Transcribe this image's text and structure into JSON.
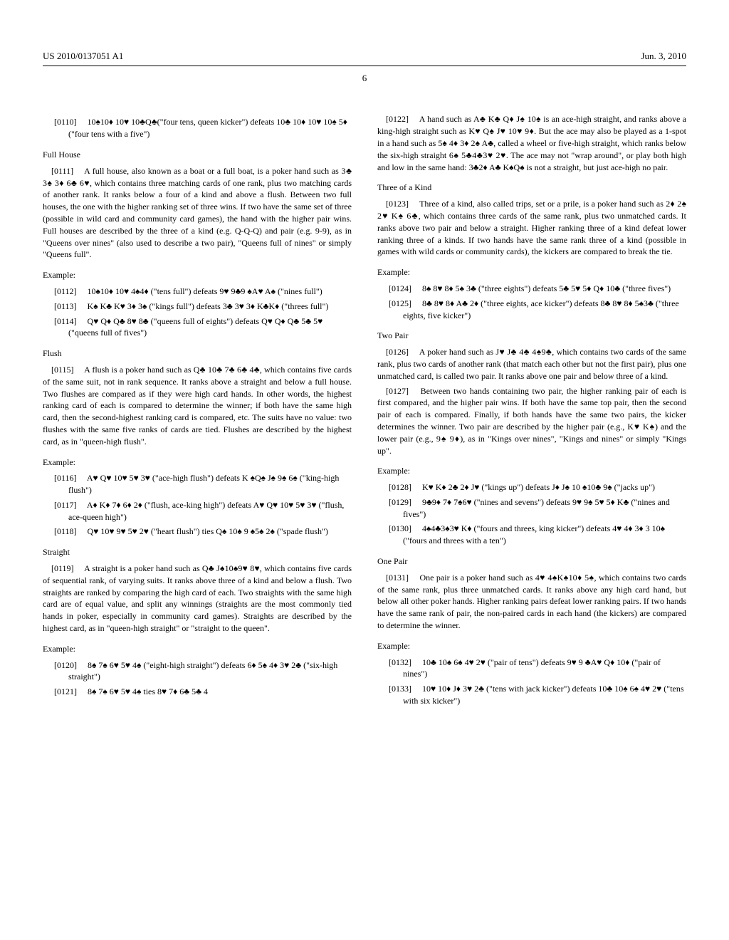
{
  "header": {
    "pub": "US 2010/0137051 A1",
    "date": "Jun. 3, 2010",
    "page": "6"
  },
  "p0110": "[0110]  10♠10♦ 10♥ 10♣Q♣(\"four tens, queen kicker\") defeats 10♣ 10♦ 10♥ 10♠ 5♦ (\"four tens with a five\")",
  "sec_fullhouse": "Full House",
  "p0111": "[0111]  A full house, also known as a boat or a full boat, is a poker hand such as 3♣ 3♠ 3♦ 6♣ 6♥, which contains three matching cards of one rank, plus two matching cards of another rank. It ranks below a four of a kind and above a flush. Between two full houses, the one with the higher ranking set of three wins. If two have the same set of three (possible in wild card and community card games), the hand with the higher pair wins. Full houses are described by the three of a kind (e.g. Q-Q-Q) and pair (e.g. 9-9), as in \"Queens over nines\" (also used to describe a two pair), \"Queens full of nines\" or simply \"Queens full\".",
  "ex1": "Example:",
  "p0112": "[0112]  10♠10♦ 10♥ 4♠4♦ (\"tens full\") defeats 9♥ 9♣9 ♠A♥ A♠ (\"nines full\")",
  "p0113": "[0113]  K♠ K♣ K♥ 3♦ 3♠ (\"kings full\") defeats 3♣ 3♥ 3♦ K♣K♦ (\"threes full\")",
  "p0114": "[0114]  Q♥ Q♦ Q♣ 8♥ 8♣ (\"queens full of eights\") defeats Q♥ Q♦ Q♣ 5♣ 5♥ (\"queens full of fives\")",
  "sec_flush": "Flush",
  "p0115": "[0115]  A flush is a poker hand such as Q♣ 10♣ 7♣ 6♣ 4♣, which contains five cards of the same suit, not in rank sequence. It ranks above a straight and below a full house. Two flushes are compared as if they were high card hands. In other words, the highest ranking card of each is compared to determine the winner; if both have the same high card, then the second-highest ranking card is compared, etc. The suits have no value: two flushes with the same five ranks of cards are tied. Flushes are described by the highest card, as in \"queen-high flush\".",
  "ex2": "Example:",
  "p0116": "[0116]  A♥ Q♥ 10♥ 5♥ 3♥ (\"ace-high flush\") defeats K ♠Q♠ J♠ 9♠ 6♠ (\"king-high flush\")",
  "p0117": "[0117]  A♦ K♦ 7♦ 6♦ 2♦ (\"flush, ace-king high\") defeats A♥ Q♥ 10♥ 5♥ 3♥ (\"flush, ace-queen high\")",
  "p0118": "[0118]  Q♥ 10♥ 9♥ 5♥ 2♥ (\"heart flush\") ties Q♠ 10♠ 9 ♠5♠ 2♠ (\"spade flush\")",
  "sec_straight": "Straight",
  "p0119": "[0119]  A straight is a poker hand such as Q♣ J♠10♠9♥ 8♥, which contains five cards of sequential rank, of varying suits. It ranks above three of a kind and below a flush. Two straights are ranked by comparing the high card of each. Two straights with the same high card are of equal value, and split any winnings (straights are the most commonly tied hands in poker, especially in community card games). Straights are described by the highest card, as in \"queen-high straight\" or \"straight to the queen\".",
  "ex3": "Example:",
  "p0120": "[0120]  8♠ 7♠ 6♥ 5♥ 4♠ (\"eight-high straight\") defeats 6♦ 5♠ 4♦ 3♥ 2♣ (\"six-high straight\")",
  "p0121": "[0121]  8♠ 7♠ 6♥ 5♥ 4♠ ties 8♥ 7♦ 6♣ 5♣ 4",
  "p0122": "[0122]  A hand such as A♣ K♣ Q♦ J♠ 10♠ is an ace-high straight, and ranks above a king-high straight such as K♥ Q♠ J♥ 10♥ 9♦. But the ace may also be played as a 1-spot in a hand such as 5♠ 4♦ 3♦ 2♠ A♣, called a wheel or five-high straight, which ranks below the six-high straight 6♠ 5♣4♣3♥ 2♥. The ace may not \"wrap around\", or play both high and low in the same hand: 3♣2♦ A♣ K♠Q♠ is not a straight, but just ace-high no pair.",
  "sec_three": "Three of a Kind",
  "p0123": "[0123]  Three of a kind, also called trips, set or a prile, is a poker hand such as 2♦ 2♠ 2♥ K♠ 6♣, which contains three cards of the same rank, plus two unmatched cards. It ranks above two pair and below a straight. Higher ranking three of a kind defeat lower ranking three of a kinds. If two hands have the same rank three of a kind (possible in games with wild cards or community cards), the kickers are compared to break the tie.",
  "ex4": "Example:",
  "p0124": "[0124]  8♠ 8♥ 8♦ 5♠ 3♣ (\"three eights\") defeats 5♣ 5♥ 5♦ Q♦ 10♣ (\"three fives\")",
  "p0125": "[0125]  8♣ 8♥ 8♦ A♣ 2♦ (\"three eights, ace kicker\") defeats 8♣ 8♥ 8♦ 5♠3♣ (\"three eights, five kicker\")",
  "sec_twopair": "Two Pair",
  "p0126": "[0126]  A poker hand such as J♥ J♣ 4♣ 4♠9♣, which contains two cards of the same rank, plus two cards of another rank (that match each other but not the first pair), plus one unmatched card, is called two pair. It ranks above one pair and below three of a kind.",
  "p0127": "[0127]  Between two hands containing two pair, the higher ranking pair of each is first compared, and the higher pair wins. If both have the same top pair, then the second pair of each is compared. Finally, if both hands have the same two pairs, the kicker determines the winner. Two pair are described by the higher pair (e.g., K♥ K♠) and the lower pair (e.g., 9♠ 9♦), as in \"Kings over nines\", \"Kings and nines\" or simply \"Kings up\".",
  "ex5": "Example:",
  "p0128": "[0128]  K♥ K♦ 2♣ 2♦ J♥ (\"kings up\") defeats J♦ J♠ 10 ♠10♣ 9♠ (\"jacks up\")",
  "p0129": "[0129]  9♣9♦ 7♦ 7♠6♥ (\"nines and sevens\") defeats 9♥ 9♠ 5♥ 5♦ K♣ (\"nines and fives\")",
  "p0130": "[0130]  4♠4♣3♠3♥ K♦ (\"fours and threes, king kicker\") defeats 4♥ 4♦ 3♦ 3 10♠ (\"fours and threes with a ten\")",
  "sec_onepair": "One Pair",
  "p0131": "[0131]  One pair is a poker hand such as 4♥ 4♠K♠10♦ 5♠, which contains two cards of the same rank, plus three unmatched cards. It ranks above any high card hand, but below all other poker hands. Higher ranking pairs defeat lower ranking pairs. If two hands have the same rank of pair, the non-paired cards in each hand (the kickers) are compared to determine the winner.",
  "ex6": "Example:",
  "p0132": "[0132]  10♣ 10♠ 6♠ 4♥ 2♥ (\"pair of tens\") defeats 9♥ 9 ♣A♥ Q♦ 10♦ (\"pair of nines\")",
  "p0133": "[0133]  10♥ 10♦ J♦ 3♥ 2♣ (\"tens with jack kicker\") defeats 10♣ 10♠ 6♠ 4♥ 2♥ (\"tens with six kicker\")"
}
